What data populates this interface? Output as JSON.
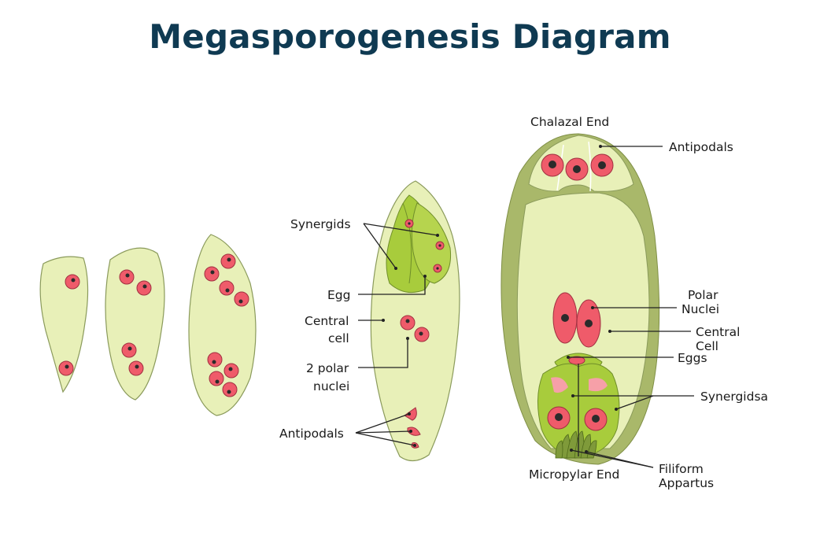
{
  "title": "Megasporogenesis Diagram",
  "colors": {
    "title": "#0f3a52",
    "cell_fill": "#e8f0b8",
    "cell_outline": "#8a9a5b",
    "wall": "#a9b86a",
    "egg_apparatus": "#a8cc3c",
    "nucleus": "#ef5b6a",
    "nucleolus": "#2b2b2b"
  },
  "labels": {
    "synergids": "Synergids",
    "egg": "Egg",
    "central_cell_1": "Central",
    "central_cell_2": "cell",
    "polar_nuclei_1": "2 polar",
    "polar_nuclei_2": "nuclei",
    "antipodals": "Antipodals",
    "chalazal_end": "Chalazal End",
    "antipodals_right": "Antipodals",
    "polar_nuclei_right_1": "Polar",
    "polar_nuclei_right_2": "Nuclei",
    "central_cell_right_1": "Central",
    "central_cell_right_2": "Cell",
    "eggs": "Eggs",
    "synergidsa": "Synergidsa",
    "micropylar_end": "Micropylar End",
    "filiform_1": "Filiform",
    "filiform_2": "Appartus"
  }
}
